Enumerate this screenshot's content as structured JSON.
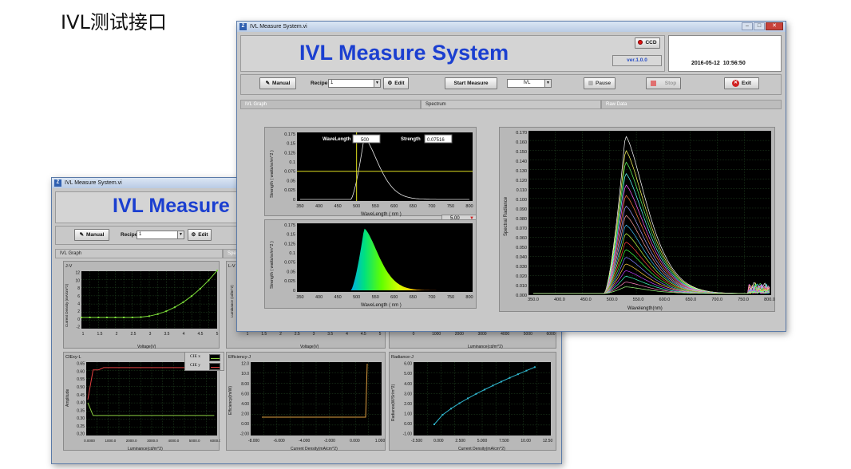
{
  "caption": "IVL测试接口",
  "back_window": {
    "title": "IVL Measure System.vi",
    "app_title": "IVL Measure",
    "manual_label": "Manual",
    "recipe_label": "Recipe",
    "recipe_value": "1",
    "edit_label": "Edit",
    "tabs": [
      "IVL Graph",
      "Spe"
    ],
    "plots": {
      "jv": {
        "title": "J-V",
        "ylabel": "Current Density (mA/cm^2)",
        "xlabel": "Voltage(V)",
        "xticks": [
          "1",
          "1.5",
          "2",
          "2.5",
          "3",
          "3.5",
          "4",
          "4.5",
          "5"
        ],
        "yticks": [
          "12",
          "10",
          "8",
          "6",
          "4",
          "2",
          "0",
          "-2"
        ]
      },
      "lv": {
        "title": "L-V",
        "ylabel": "Luminance (cd/m^2)",
        "xlabel": "Voltage(V)",
        "xticks": [
          "1",
          "1.5",
          "2",
          "2.5",
          "3",
          "3.5",
          "4",
          "4.5",
          "5"
        ]
      },
      "third": {
        "xlabel": "Luminance(cd/m^2)",
        "xticks": [
          "0",
          "1000",
          "2000",
          "3000",
          "4000",
          "5000",
          "6000"
        ],
        "ytick": "-2.5"
      },
      "cie": {
        "title": "CIExy-L",
        "ylabel": "Amplitude",
        "xlabel": "Luminance(cd/m^2)",
        "legend": [
          "CIE x",
          "CIE y"
        ],
        "yticks": [
          "0.65",
          "0.60",
          "0.55",
          "0.50",
          "0.45",
          "0.40",
          "0.35",
          "0.30",
          "0.25",
          "0.20"
        ],
        "xticks": [
          "0.0000",
          "1000.0",
          "2000.0",
          "3000.0",
          "4000.0",
          "5000.0",
          "6000.0"
        ]
      },
      "eff": {
        "title": "Efficiency-J",
        "ylabel": "Efficiency(lm/W)",
        "xlabel": "Current Density(mA/cm^2)",
        "yticks": [
          "12.0",
          "10.0",
          "8.00",
          "6.00",
          "4.00",
          "2.00",
          "0.00",
          "-2.00"
        ],
        "xticks": [
          "-8.000",
          "-6.000",
          "-4.000",
          "-2.000",
          "0.000",
          "1.000"
        ]
      },
      "rad": {
        "title": "Radiance-J",
        "ylabel": "Radiance(W/Sr/m^2)",
        "xlabel": "Current Density(mA/cm^2)",
        "yticks": [
          "6.00",
          "5.00",
          "4.00",
          "3.00",
          "2.00",
          "1.00",
          "0.00",
          "-1.00"
        ],
        "xticks": [
          "-2.500",
          "0.000",
          "2.500",
          "5.000",
          "7.500",
          "10.00",
          "12.50"
        ]
      }
    }
  },
  "front_window": {
    "title": "IVL Measure System.vi",
    "app_title": "IVL Measure System",
    "ccd_label": "CCD",
    "version": "ver.1.0.0",
    "datetime": "2016-05-12  10:56:50",
    "manual_label": "Manual",
    "recipe_label": "Recipe",
    "recipe_value": "1",
    "edit_label": "Edit",
    "start_label": "Start Measure",
    "mode_value": "IVL",
    "pause_label": "Pause",
    "stop_label": "Stop",
    "exit_label": "Exit",
    "tabs": [
      "IVL Graph",
      "Spectrum",
      "Raw Data"
    ],
    "spectrum_top": {
      "wavelength_label": "WaveLength",
      "wavelength_value": "500",
      "strength_label": "Strength",
      "strength_value": "0.07516",
      "ylabel": "Strength ( watts/sr/m^2 )",
      "xlabel": "WaveLength ( nm )",
      "yticks": [
        "0.175",
        "0.15",
        "0.125",
        "0.1",
        "0.075",
        "0.05",
        "0.025",
        "0"
      ],
      "xticks": [
        "350",
        "400",
        "450",
        "500",
        "550",
        "600",
        "650",
        "700",
        "750",
        "800"
      ]
    },
    "scale_value": "5.00",
    "spectrum_bottom": {
      "ylabel": "Strength ( watts/sr/m^2 )",
      "xlabel": "WaveLength ( nm )",
      "yticks": [
        "0.175",
        "0.15",
        "0.125",
        "0.1",
        "0.075",
        "0.05",
        "0.025",
        "0"
      ],
      "xticks": [
        "350",
        "400",
        "450",
        "500",
        "550",
        "600",
        "650",
        "700",
        "750",
        "800"
      ]
    },
    "radiance_plot": {
      "ylabel": "Spectral Radiance",
      "xlabel": "Wavelength(nm)",
      "yticks": [
        "0.170",
        "0.160",
        "0.150",
        "0.140",
        "0.130",
        "0.120",
        "0.110",
        "0.100",
        "0.090",
        "0.080",
        "0.070",
        "0.060",
        "0.050",
        "0.040",
        "0.030",
        "0.020",
        "0.010",
        "0.000"
      ],
      "xticks": [
        "350.0",
        "400.0",
        "450.0",
        "500.0",
        "550.0",
        "600.0",
        "650.0",
        "700.0",
        "750.0",
        "800.0"
      ]
    }
  },
  "colors": {
    "title_blue": "#1b3fd0",
    "led_red": "#e01010",
    "grid_green": "#2e5a2e"
  }
}
